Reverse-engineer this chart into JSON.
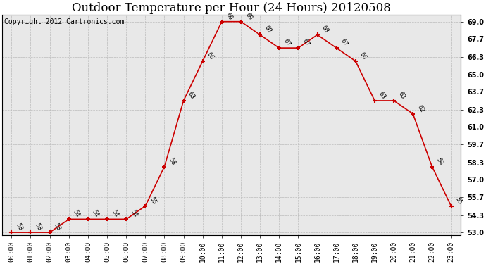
{
  "title": "Outdoor Temperature per Hour (24 Hours) 20120508",
  "copyright_text": "Copyright 2012 Cartronics.com",
  "hours": [
    "00:00",
    "01:00",
    "02:00",
    "03:00",
    "04:00",
    "05:00",
    "06:00",
    "07:00",
    "08:00",
    "09:00",
    "10:00",
    "11:00",
    "12:00",
    "13:00",
    "14:00",
    "15:00",
    "16:00",
    "17:00",
    "18:00",
    "19:00",
    "20:00",
    "21:00",
    "22:00",
    "23:00"
  ],
  "y_data": [
    53,
    53,
    53,
    54,
    54,
    54,
    54,
    55,
    58,
    63,
    66,
    69,
    69,
    68,
    67,
    67,
    68,
    67,
    66,
    63,
    63,
    62,
    58,
    55
  ],
  "line_color": "#cc0000",
  "marker_color": "#cc0000",
  "grid_color": "#bbbbbb",
  "background_color": "#ffffff",
  "plot_bg_color": "#e8e8e8",
  "yticks": [
    53.0,
    54.3,
    55.7,
    57.0,
    58.3,
    59.7,
    61.0,
    62.3,
    63.7,
    65.0,
    66.3,
    67.7,
    69.0
  ],
  "ylim_min": 52.8,
  "ylim_max": 69.5,
  "title_fontsize": 12,
  "annotation_fontsize": 6,
  "tick_fontsize": 7,
  "copyright_fontsize": 7
}
